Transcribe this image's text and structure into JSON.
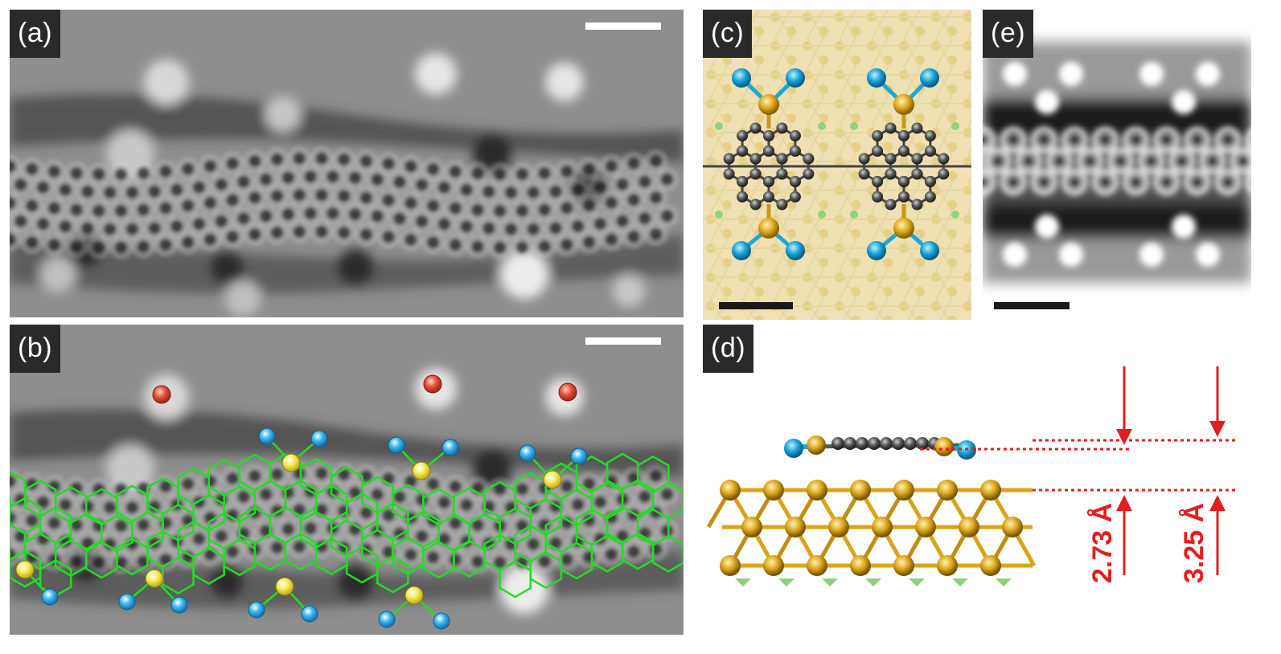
{
  "panels": {
    "a": {
      "label": "(a)"
    },
    "b": {
      "label": "(b)"
    },
    "c": {
      "label": "(c)"
    },
    "d": {
      "label": "(d)"
    },
    "e": {
      "label": "(e)"
    }
  },
  "measurements": {
    "lower": "2.73 Å",
    "upper": "3.25 Å"
  },
  "colors": {
    "label_bg": "#2a2a2a",
    "lattice_line": "#22dd22",
    "sulfur_atom": "#f2e23a",
    "oxygen_atom": "#29a8ea",
    "chlorine_atom": "#e0503a",
    "dimension_red": "#e02020",
    "substrate_gold": "#d9a418",
    "carbon_gray": "#4a4a4a"
  }
}
